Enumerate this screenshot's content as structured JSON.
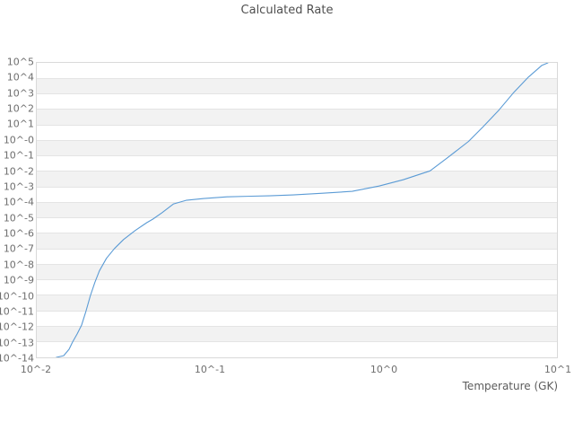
{
  "chart_data": {
    "type": "line",
    "title": "Calculated Rate",
    "xlabel": "Temperature (GK)",
    "ylabel": "",
    "x_scale": "log10",
    "y_scale": "log10",
    "xlim_log10": [
      -2,
      1
    ],
    "ylim_log10": [
      -14,
      5
    ],
    "x_tick_labels": [
      "10^-2",
      "10^-1",
      "10^0",
      "10^1"
    ],
    "x_tick_log10": [
      -2,
      -1,
      0,
      1
    ],
    "y_tick_labels": [
      "10^5",
      "10^4",
      "10^3",
      "10^2",
      "10^1",
      "10^-0",
      "10^-1",
      "10^-2",
      "10^-3",
      "10^-4",
      "10^-5",
      "10^-6",
      "10^-7",
      "10^-8",
      "10^-9",
      "10^-10",
      "10^-11",
      "10^-12",
      "10^-13",
      "10^-14"
    ],
    "y_tick_log10": [
      5,
      4,
      3,
      2,
      1,
      0,
      -1,
      -2,
      -3,
      -4,
      -5,
      -6,
      -7,
      -8,
      -9,
      -10,
      -11,
      -12,
      -13,
      -14
    ],
    "grid": "horizontal-alternating-bands",
    "legend": "none",
    "colors": {
      "line": "#5b9bd5",
      "band_alt": "#f2f2f2",
      "gridline": "#e4e4e4",
      "plot_border": "#d9d9d9",
      "tick_text": "#6e6e6e",
      "title_text": "#4f4f4f",
      "background": "#ffffff"
    },
    "series": [
      {
        "name": "calculated rate",
        "x_units": "GK",
        "points_log10": [
          [
            -1.887,
            -14.0
          ],
          [
            -1.845,
            -13.89
          ],
          [
            -1.814,
            -13.48
          ],
          [
            -1.794,
            -13.02
          ],
          [
            -1.768,
            -12.5
          ],
          [
            -1.742,
            -11.93
          ],
          [
            -1.716,
            -11.01
          ],
          [
            -1.691,
            -10.03
          ],
          [
            -1.665,
            -9.16
          ],
          [
            -1.639,
            -8.42
          ],
          [
            -1.598,
            -7.61
          ],
          [
            -1.552,
            -6.98
          ],
          [
            -1.5,
            -6.4
          ],
          [
            -1.433,
            -5.82
          ],
          [
            -1.366,
            -5.31
          ],
          [
            -1.33,
            -5.08
          ],
          [
            -1.278,
            -4.67
          ],
          [
            -1.211,
            -4.1
          ],
          [
            -1.139,
            -3.87
          ],
          [
            -1.036,
            -3.75
          ],
          [
            -0.902,
            -3.64
          ],
          [
            -0.763,
            -3.6
          ],
          [
            -0.66,
            -3.58
          ],
          [
            -0.521,
            -3.52
          ],
          [
            -0.351,
            -3.41
          ],
          [
            -0.181,
            -3.29
          ],
          [
            -0.026,
            -2.95
          ],
          [
            0.113,
            -2.54
          ],
          [
            0.268,
            -1.97
          ],
          [
            0.371,
            -1.1
          ],
          [
            0.49,
            -0.07
          ],
          [
            0.577,
            0.91
          ],
          [
            0.665,
            1.95
          ],
          [
            0.747,
            3.04
          ],
          [
            0.835,
            4.08
          ],
          [
            0.912,
            4.83
          ],
          [
            0.948,
            5.0
          ]
        ]
      }
    ]
  }
}
